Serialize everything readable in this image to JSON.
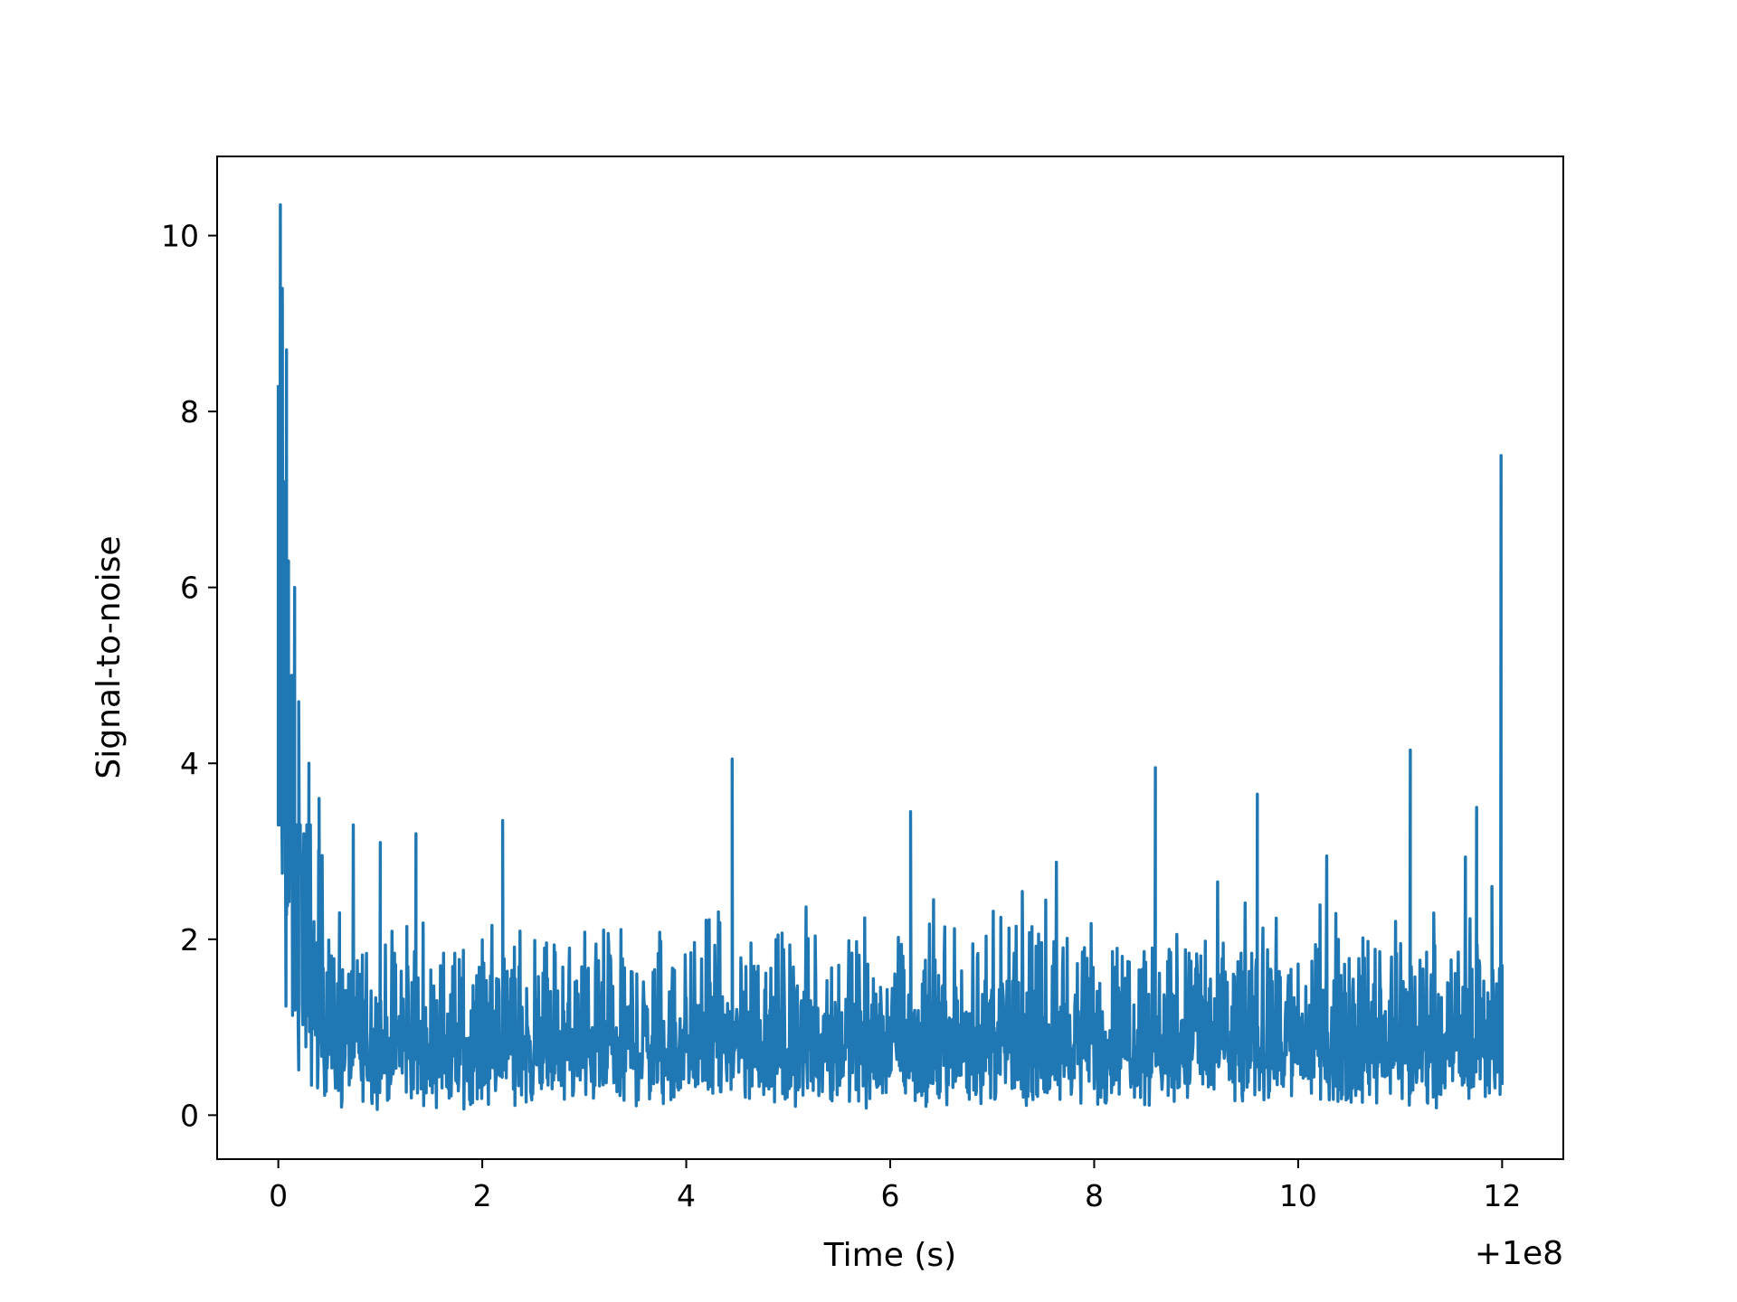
{
  "chart_data": {
    "type": "line",
    "title": "",
    "xlabel": "Time (s)",
    "ylabel": "Signal-to-noise",
    "x_offset_label": "+1e8",
    "xlim": [
      -0.6,
      12.6
    ],
    "ylim": [
      -0.5,
      10.9
    ],
    "grid": false,
    "legend": "none",
    "line_color": "#1f77b4",
    "x_ticks": [
      {
        "value": 0,
        "label": "0"
      },
      {
        "value": 2,
        "label": "2"
      },
      {
        "value": 4,
        "label": "4"
      },
      {
        "value": 6,
        "label": "6"
      },
      {
        "value": 8,
        "label": "8"
      },
      {
        "value": 10,
        "label": "10"
      },
      {
        "value": 12,
        "label": "12"
      }
    ],
    "y_ticks": [
      {
        "value": 0,
        "label": "0"
      },
      {
        "value": 2,
        "label": "2"
      },
      {
        "value": 4,
        "label": "4"
      },
      {
        "value": 6,
        "label": "6"
      },
      {
        "value": 8,
        "label": "8"
      },
      {
        "value": 10,
        "label": "10"
      }
    ],
    "series": [
      {
        "x": [
          100000000.0,
          100000000.02,
          100000000.04,
          100000000.06,
          100000000.08,
          100000000.1,
          100000000.13,
          100000000.16,
          100000000.2,
          100000000.25,
          100000000.3,
          100000000.35,
          100000000.4,
          100000000.5,
          100000000.6,
          100000000.8,
          100000001.0,
          100000001.35,
          100000002.2,
          100000004.45,
          100000006.2,
          100000008.6,
          100000009.6,
          100000011.1,
          100000011.75,
          100000011.9,
          100000011.99,
          100000012.0
        ],
        "y": [
          8.3,
          10.35,
          9.4,
          7.2,
          8.7,
          6.3,
          5.0,
          6.0,
          4.7,
          3.2,
          4.0,
          2.2,
          3.6,
          1.5,
          2.3,
          1.6,
          3.1,
          3.2,
          3.35,
          4.05,
          3.45,
          3.95,
          3.65,
          4.15,
          3.5,
          2.6,
          7.5,
          1.7
        ]
      }
    ]
  }
}
